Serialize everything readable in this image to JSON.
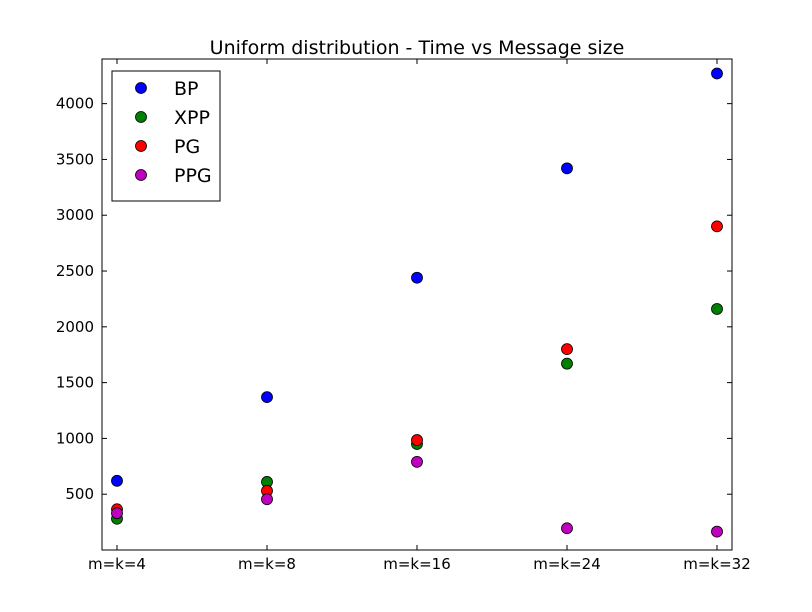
{
  "chart_data": {
    "type": "scatter",
    "title": "Uniform distribution - Time vs Message size",
    "xlabel": "",
    "ylabel": "",
    "categories": [
      "m=k=4",
      "m=k=8",
      "m=k=16",
      "m=k=24",
      "m=k=32"
    ],
    "ylim": [
      0,
      4400
    ],
    "yticks": [
      500,
      1000,
      1500,
      2000,
      2500,
      3000,
      3500,
      4000
    ],
    "grid": false,
    "legend_position": "top-left",
    "series": [
      {
        "name": "BP",
        "color": "#0000ff",
        "values": [
          620,
          1370,
          2440,
          3420,
          4270
        ]
      },
      {
        "name": "XPP",
        "color": "#008000",
        "values": [
          280,
          610,
          950,
          1670,
          2160
        ]
      },
      {
        "name": "PG",
        "color": "#ff0000",
        "values": [
          365,
          530,
          985,
          1800,
          2900
        ]
      },
      {
        "name": "PPG",
        "color": "#bf00bf",
        "values": [
          330,
          455,
          790,
          195,
          165
        ]
      }
    ]
  }
}
